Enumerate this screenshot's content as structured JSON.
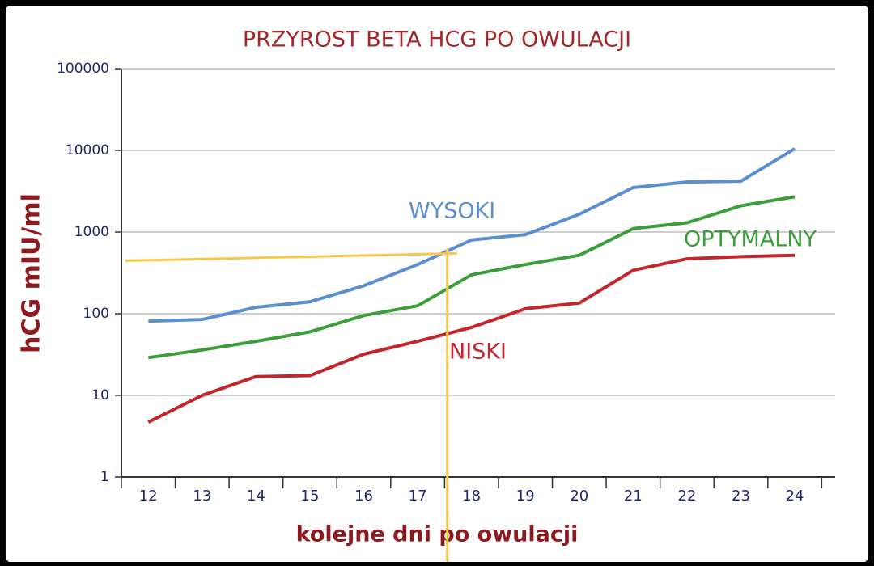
{
  "chart_data": {
    "type": "line",
    "title": "PRZYROST BETA HCG PO OWULACJI",
    "x_label": "kolejne dni po owulacji",
    "y_label": "hCG mIU/ml",
    "log_scale": true,
    "grid": true,
    "x": [
      12,
      13,
      14,
      15,
      16,
      17,
      18,
      19,
      20,
      21,
      22,
      23,
      24
    ],
    "xlim": [
      11.5,
      24.75
    ],
    "xticks": [
      12,
      13,
      14,
      15,
      16,
      17,
      18,
      19,
      20,
      21,
      22,
      23,
      24
    ],
    "ylim": [
      1,
      100000
    ],
    "yticks": [
      1,
      10,
      100,
      1000,
      10000,
      100000
    ],
    "series": [
      {
        "name": "WYSOKI",
        "color": "#5b8fd0",
        "values": [
          81,
          85,
          120,
          140,
          220,
          400,
          800,
          930,
          1650,
          3500,
          4100,
          4200,
          10500
        ]
      },
      {
        "name": "OPTYMALNY",
        "color": "#3c9e3a",
        "values": [
          29,
          36,
          46,
          60,
          95,
          125,
          300,
          400,
          520,
          1100,
          1300,
          2100,
          2700
        ]
      },
      {
        "name": "NISKI",
        "color": "#c1272d",
        "values": [
          4.7,
          10,
          17,
          17.5,
          32,
          46,
          68,
          115,
          135,
          340,
          470,
          500,
          520
        ]
      }
    ],
    "marker": {
      "x": 17.55,
      "value": 500,
      "color": "#f7c948"
    }
  }
}
